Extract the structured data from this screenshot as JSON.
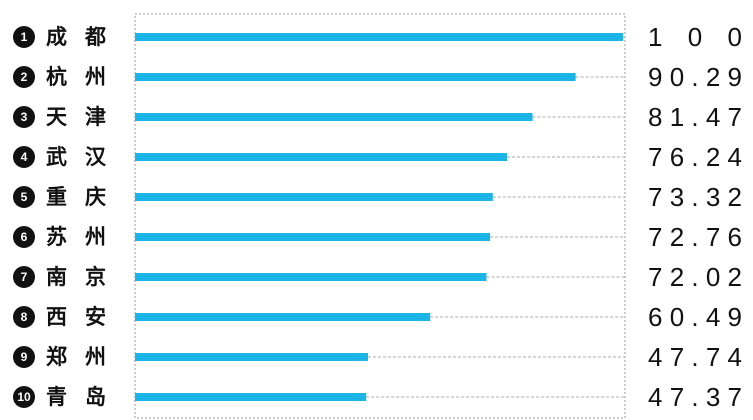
{
  "chart_data": {
    "type": "bar",
    "orientation": "horizontal",
    "ranks": [
      1,
      2,
      3,
      4,
      5,
      6,
      7,
      8,
      9,
      10
    ],
    "categories": [
      "成都",
      "杭州",
      "天津",
      "武汉",
      "重庆",
      "苏州",
      "南京",
      "西安",
      "郑州",
      "青岛"
    ],
    "values": [
      100,
      90.29,
      81.47,
      76.24,
      73.32,
      72.76,
      72.02,
      60.49,
      47.74,
      47.37
    ],
    "color": "#1ab4e6",
    "xlim": [
      0,
      100
    ]
  }
}
